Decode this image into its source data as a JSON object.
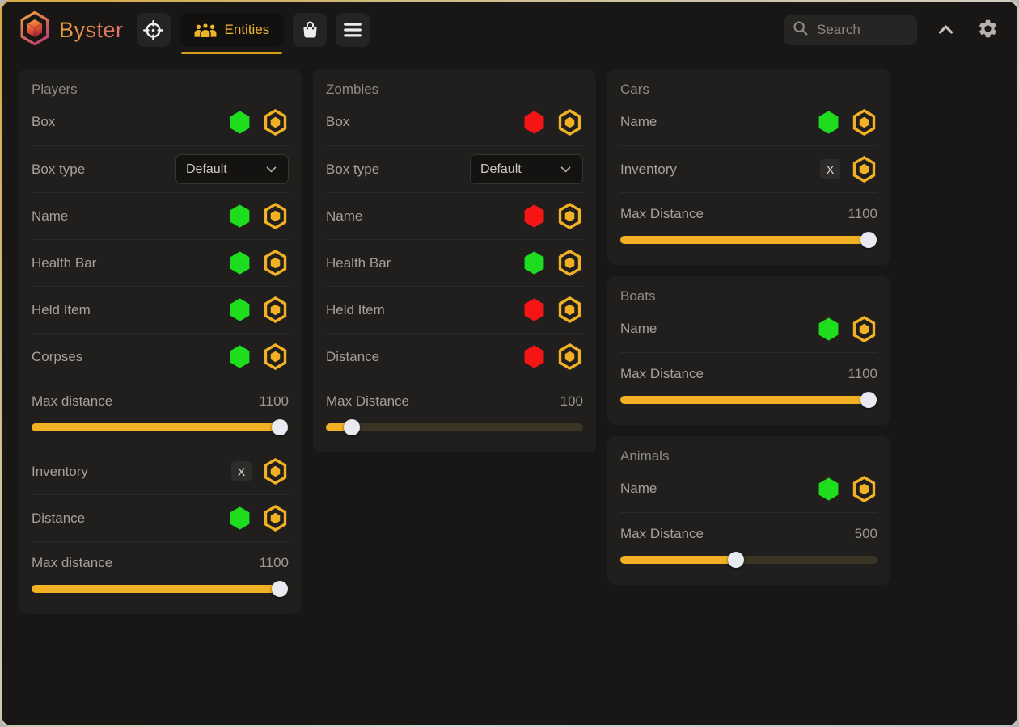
{
  "app": {
    "title": "Byster"
  },
  "colors": {
    "accent": "#f2b124",
    "toggle_on": "#1edd1e",
    "toggle_off": "#f51515",
    "tab_underline": "#d4a017"
  },
  "header": {
    "nav": [
      {
        "name": "aim",
        "icon": "crosshair-icon",
        "label": "",
        "active": false
      },
      {
        "name": "entities",
        "icon": "people-icon",
        "label": "Entities",
        "active": true
      },
      {
        "name": "shop",
        "icon": "bag-icon",
        "label": "",
        "active": false
      },
      {
        "name": "menu",
        "icon": "menu-icon",
        "label": "",
        "active": false
      }
    ],
    "search_placeholder": "Search"
  },
  "panels": [
    {
      "title": "Players",
      "column": 0,
      "rows": [
        {
          "type": "toggle",
          "label": "Box",
          "enabled": true
        },
        {
          "type": "select",
          "label": "Box type",
          "value": "Default"
        },
        {
          "type": "toggle",
          "label": "Name",
          "enabled": true
        },
        {
          "type": "toggle",
          "label": "Health Bar",
          "enabled": true
        },
        {
          "type": "toggle",
          "label": "Held Item",
          "enabled": true
        },
        {
          "type": "toggle",
          "label": "Corpses",
          "enabled": true
        },
        {
          "type": "slider",
          "label": "Max distance",
          "value": "1100",
          "percent": 96.5
        },
        {
          "type": "keybind",
          "label": "Inventory",
          "key": "X"
        },
        {
          "type": "toggle",
          "label": "Distance",
          "enabled": true
        },
        {
          "type": "slider",
          "label": "Max distance",
          "value": "1100",
          "percent": 96.5
        }
      ]
    },
    {
      "title": "Zombies",
      "column": 1,
      "rows": [
        {
          "type": "toggle",
          "label": "Box",
          "enabled": false
        },
        {
          "type": "select",
          "label": "Box type",
          "value": "Default"
        },
        {
          "type": "toggle",
          "label": "Name",
          "enabled": false
        },
        {
          "type": "toggle",
          "label": "Health Bar",
          "enabled": true
        },
        {
          "type": "toggle",
          "label": "Held Item",
          "enabled": false
        },
        {
          "type": "toggle",
          "label": "Distance",
          "enabled": false
        },
        {
          "type": "slider",
          "label": "Max Distance",
          "value": "100",
          "percent": 10
        }
      ]
    },
    {
      "title": "Cars",
      "column": 2,
      "rows": [
        {
          "type": "toggle",
          "label": "Name",
          "enabled": true
        },
        {
          "type": "keybind",
          "label": "Inventory",
          "key": "X"
        },
        {
          "type": "slider",
          "label": "Max Distance",
          "value": "1100",
          "percent": 96.5
        }
      ]
    },
    {
      "title": "Boats",
      "column": 2,
      "rows": [
        {
          "type": "toggle",
          "label": "Name",
          "enabled": true
        },
        {
          "type": "slider",
          "label": "Max Distance",
          "value": "1100",
          "percent": 96.5
        }
      ]
    },
    {
      "title": "Animals",
      "column": 2,
      "rows": [
        {
          "type": "toggle",
          "label": "Name",
          "enabled": true
        },
        {
          "type": "slider",
          "label": "Max Distance",
          "value": "500",
          "percent": 45
        }
      ]
    }
  ]
}
